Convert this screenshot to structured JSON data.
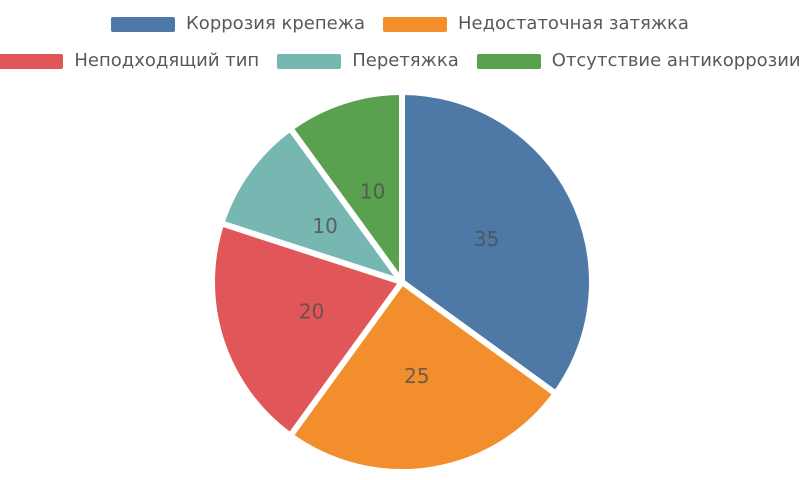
{
  "chart_data": {
    "type": "pie",
    "labels": [
      "Коррозия крепежа",
      "Недостаточная затяжка",
      "Неподходящий тип",
      "Перетяжка",
      "Отсутствие антикоррозии"
    ],
    "values": [
      35,
      25,
      20,
      10,
      10
    ],
    "value_labels": [
      "35",
      "25",
      "20",
      "10",
      "10"
    ],
    "colors": [
      "#4e79a7",
      "#f28e2b",
      "#e15759",
      "#76b7b2",
      "#59a14f"
    ],
    "start": "12-oclock",
    "direction": "clockwise",
    "legend_position": "top-center",
    "legend_rows": [
      [
        0,
        1
      ],
      [
        2,
        3,
        4
      ]
    ],
    "background_color": "#ffffff",
    "legend_text_color": "#595959",
    "value_label_color": "#4d4d4d",
    "title": "",
    "slice_separator_color": "#ffffff"
  }
}
